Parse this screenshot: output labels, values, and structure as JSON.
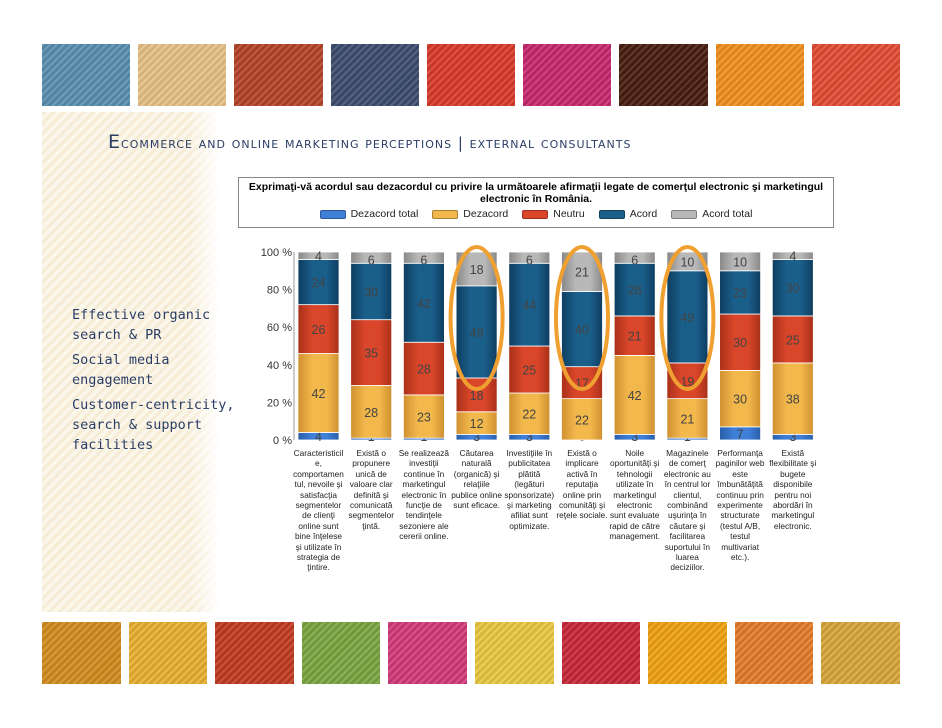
{
  "slide": {
    "title_first_letter": "E",
    "title_rest": "commerce and online marketing perceptions | external consultants",
    "bullets": [
      "Effective organic search & PR",
      "Social media engagement",
      "Customer-centricity, search & support facilities"
    ]
  },
  "colors": {
    "dezacord_total": "#3f7fd8",
    "dezacord": "#f2b84c",
    "neutru": "#d9462a",
    "acord": "#1a5e8a",
    "acord_total": "#b8b8b8",
    "highlight": "#f0a030"
  },
  "chart_data": {
    "type": "bar",
    "title": "Exprimaţi-vă acordul sau dezacordul cu privire la următoarele afirmaţii legate de comerţul electronic şi marketingul electronic în România.",
    "ylim": [
      0,
      100
    ],
    "yticks": [
      "0 %",
      "20 %",
      "40 %",
      "60 %",
      "80 %",
      "100 %"
    ],
    "grid": false,
    "legend": "top",
    "categories": [
      "Caracteristicile, comportamentul, nevoile şi satisfacţia segmentelor de clienţi online sunt bine înţelese şi utilizate în strategia de ţintire.",
      "Există o propunere unică de valoare clar definită şi comunicată segmentelor ţintă.",
      "Se realizează investiţii continue în marketingul electronic în funcţie de tendinţele sezoniere ale cererii online.",
      "Căutarea naturală (organică) şi relaţiile publice online sunt eficace.",
      "Investiţiile în publicitatea plătită (legături sponsorizate) şi marketing afiliat sunt optimizate.",
      "Există o implicare activă în reputaţia online prin comunităţi şi reţele sociale.",
      "Noile oportunităţi şi tehnologii utilizate în marketingul electronic sunt evaluate rapid de către management.",
      "Magazinele de comerţ electronic au în centrul lor clientul, combinând uşurinţa în căutare şi facilitarea suportului în luarea deciziilor.",
      "Performanţa paginilor web este îmbunătăţită continuu prin experimente structurate (testul A/B, testul multivariat etc.).",
      "Există flexibilitate şi bugete disponibile pentru noi abordări în marketingul electronic."
    ],
    "series": [
      {
        "name": "Dezacord total",
        "values": [
          4,
          1,
          1,
          3,
          3,
          0,
          3,
          1,
          7,
          3
        ]
      },
      {
        "name": "Dezacord",
        "values": [
          42,
          28,
          23,
          12,
          22,
          22,
          42,
          21,
          30,
          38
        ]
      },
      {
        "name": "Neutru",
        "values": [
          26,
          35,
          28,
          18,
          25,
          17,
          21,
          19,
          30,
          25
        ]
      },
      {
        "name": "Acord",
        "values": [
          24,
          30,
          42,
          49,
          44,
          40,
          28,
          49,
          23,
          30
        ]
      },
      {
        "name": "Acord total",
        "values": [
          4,
          6,
          6,
          18,
          6,
          21,
          6,
          10,
          10,
          4
        ]
      }
    ],
    "highlighted_categories": [
      3,
      5,
      7
    ]
  }
}
